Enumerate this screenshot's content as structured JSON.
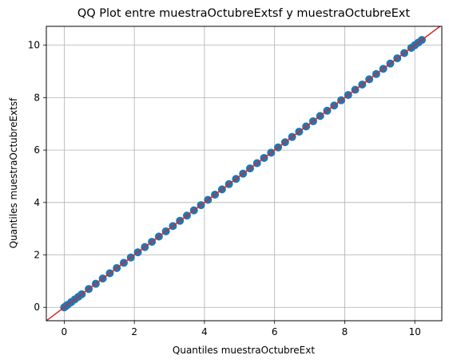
{
  "chart_data": {
    "type": "scatter",
    "title": "QQ Plot entre muestraOctubreExtsf y muestraOctubreExt",
    "xlabel": "Quantiles muestraOctubreExt",
    "ylabel": "Quantiles muestraOctubreExtsf",
    "xlim": [
      -0.51,
      10.77
    ],
    "ylim": [
      -0.51,
      10.72
    ],
    "xticks": [
      0,
      2,
      4,
      6,
      8,
      10
    ],
    "yticks": [
      0,
      2,
      4,
      6,
      8,
      10
    ],
    "grid": true,
    "reference_line": {
      "slope": 1,
      "intercept": 0,
      "color": "#d62728"
    },
    "point_color": "#1f77b4",
    "series": [
      {
        "points": [
          [
            0.0,
            0.0
          ],
          [
            0.05,
            0.05
          ],
          [
            0.1,
            0.1
          ],
          [
            0.2,
            0.2
          ],
          [
            0.3,
            0.3
          ],
          [
            0.4,
            0.4
          ],
          [
            0.5,
            0.5
          ],
          [
            0.7,
            0.7
          ],
          [
            0.9,
            0.9
          ],
          [
            1.1,
            1.1
          ],
          [
            1.3,
            1.3
          ],
          [
            1.5,
            1.5
          ],
          [
            1.7,
            1.7
          ],
          [
            1.9,
            1.9
          ],
          [
            2.1,
            2.1
          ],
          [
            2.3,
            2.3
          ],
          [
            2.5,
            2.5
          ],
          [
            2.7,
            2.7
          ],
          [
            2.9,
            2.9
          ],
          [
            3.1,
            3.1
          ],
          [
            3.3,
            3.3
          ],
          [
            3.5,
            3.5
          ],
          [
            3.7,
            3.7
          ],
          [
            3.9,
            3.9
          ],
          [
            4.1,
            4.1
          ],
          [
            4.3,
            4.3
          ],
          [
            4.5,
            4.5
          ],
          [
            4.7,
            4.7
          ],
          [
            4.9,
            4.9
          ],
          [
            5.1,
            5.1
          ],
          [
            5.3,
            5.3
          ],
          [
            5.5,
            5.5
          ],
          [
            5.7,
            5.7
          ],
          [
            5.9,
            5.9
          ],
          [
            6.1,
            6.1
          ],
          [
            6.3,
            6.3
          ],
          [
            6.5,
            6.5
          ],
          [
            6.7,
            6.7
          ],
          [
            6.9,
            6.9
          ],
          [
            7.1,
            7.1
          ],
          [
            7.3,
            7.3
          ],
          [
            7.5,
            7.5
          ],
          [
            7.7,
            7.7
          ],
          [
            7.9,
            7.9
          ],
          [
            8.1,
            8.1
          ],
          [
            8.3,
            8.3
          ],
          [
            8.5,
            8.5
          ],
          [
            8.7,
            8.7
          ],
          [
            8.9,
            8.9
          ],
          [
            9.1,
            9.1
          ],
          [
            9.3,
            9.3
          ],
          [
            9.5,
            9.5
          ],
          [
            9.7,
            9.7
          ],
          [
            9.9,
            9.9
          ],
          [
            10.0,
            10.0
          ],
          [
            10.1,
            10.1
          ],
          [
            10.2,
            10.2
          ]
        ]
      }
    ]
  }
}
